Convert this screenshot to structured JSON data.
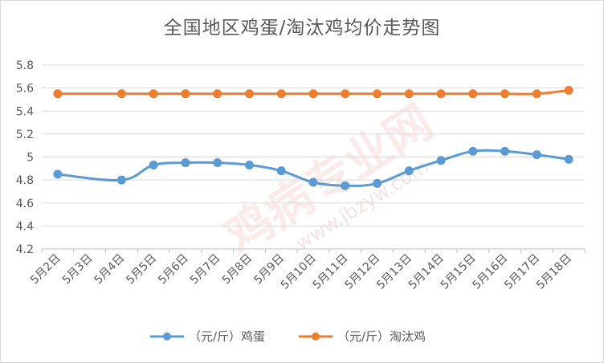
{
  "chart_data": {
    "type": "line",
    "title": "全国地区鸡蛋/淘汰鸡均价走势图",
    "xlabel": "",
    "ylabel": "",
    "categories": [
      "5月2日",
      "5月3日",
      "5月4日",
      "5月5日",
      "5月6日",
      "5月7日",
      "5月8日",
      "5月9日",
      "5月10日",
      "5月11日",
      "5月12日",
      "5月13日",
      "5月14日",
      "5月15日",
      "5月16日",
      "5月17日",
      "5月18日"
    ],
    "series": [
      {
        "name": "（元/斤）鸡蛋",
        "color": "#5B9BD5",
        "values": [
          4.85,
          null,
          4.8,
          4.93,
          4.95,
          4.95,
          4.93,
          4.88,
          4.78,
          4.75,
          4.77,
          4.88,
          4.97,
          5.05,
          5.05,
          5.02,
          4.98
        ]
      },
      {
        "name": "（元/斤）淘汰鸡",
        "color": "#ED7D31",
        "values": [
          5.55,
          null,
          5.55,
          5.55,
          5.55,
          5.55,
          5.55,
          5.55,
          5.55,
          5.55,
          5.55,
          5.55,
          5.55,
          5.55,
          5.55,
          5.55,
          5.58
        ]
      }
    ],
    "ylim": [
      4.2,
      5.8
    ],
    "yticks": [
      "4.2",
      "4.4",
      "4.6",
      "4.8",
      "5",
      "5.2",
      "5.4",
      "5.6",
      "5.8"
    ],
    "grid": true,
    "legend": "bottom",
    "watermark": [
      "鸡病专业网",
      "www.jbzyw.com"
    ]
  }
}
